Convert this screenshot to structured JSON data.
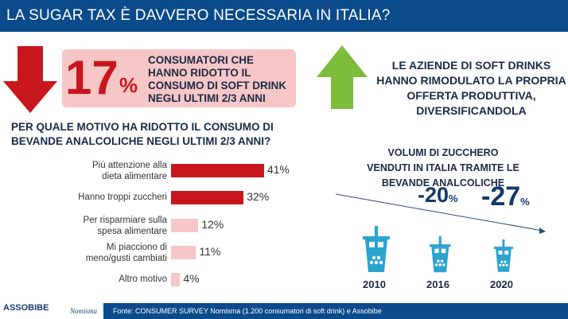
{
  "header": {
    "title": "LA SUGAR TAX È DAVVERO NECESSARIA IN ITALIA?"
  },
  "left": {
    "stat_value": "17",
    "stat_unit": "%",
    "stat_text": "CONSUMATORI CHE HANNO RIDOTTO IL CONSUMO DI SOFT DRINK NEGLI ULTIMI 2/3 ANNI",
    "question": "PER QUALE MOTIVO HA RIDOTTO IL CONSUMO DI BEVANDE ANALCOLICHE NEGLI ULTIMI 2/3 ANNI?"
  },
  "right": {
    "headline": "LE AZIENDE DI SOFT DRINKS HANNO RIMODULATO LA PROPRIA OFFERTA PRODUTTIVA, DIVERSIFICANDOLA",
    "chart_title": "VOLUMI DI ZUCCHERO VENDUTI IN ITALIA TRAMITE LE BEVANDE ANALCOLICHE"
  },
  "chart_data": [
    {
      "type": "bar",
      "orientation": "horizontal",
      "title": "PER QUALE MOTIVO HA RIDOTTO IL CONSUMO DI BEVANDE ANALCOLICHE NEGLI ULTIMI 2/3 ANNI?",
      "categories": [
        "Più attenzione alla dieta alimentare",
        "Hanno troppi zuccheri",
        "Per risparmiare sulla spesa alimentare",
        "Mi piacciono di meno/gusti cambiati",
        "Altro motivo"
      ],
      "values": [
        41,
        32,
        12,
        11,
        4
      ],
      "labels": [
        "41%",
        "32%",
        "12%",
        "11%",
        "4%"
      ],
      "colors": [
        "#c8161d",
        "#c8161d",
        "#f7c6c6",
        "#f7c6c6",
        "#f7c6c6"
      ]
    },
    {
      "type": "pictogram",
      "title": "VOLUMI DI ZUCCHERO VENDUTI IN ITALIA TRAMITE LE BEVANDE ANALCOLICHE",
      "categories": [
        "2010",
        "2016",
        "2020"
      ],
      "values": [
        0,
        -20,
        -27
      ],
      "labels": [
        "",
        "-20",
        "-27"
      ],
      "unit": "%",
      "color": "#2aa3cf"
    }
  ],
  "footer": {
    "source": "Fonte: CONSUMER SURVEY Nomisma (1.200 consumatori di soft drink) e Assobibe",
    "logo1": "ASSOBIBE",
    "logo2": "Nomisma"
  }
}
